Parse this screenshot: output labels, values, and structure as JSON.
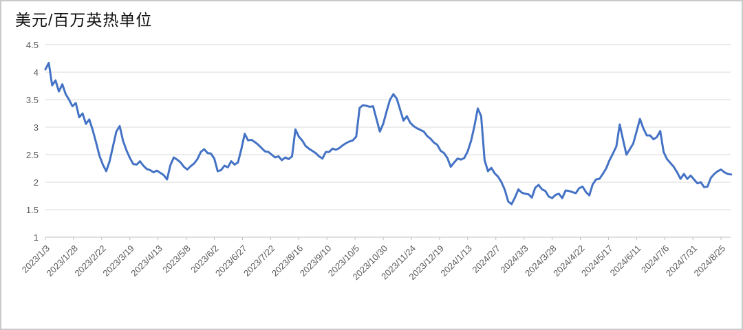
{
  "chart": {
    "title": "美元/百万英热单位"
  },
  "chart_data": {
    "type": "line",
    "title": "美元/百万英热单位",
    "x_start_date": "2023/1/3",
    "x_end_date": "2024/8/25",
    "sample_interval_days": 3,
    "x_tick_labels": [
      "2023/1/3",
      "2023/1/28",
      "2023/2/22",
      "2023/3/19",
      "2023/4/13",
      "2023/5/8",
      "2023/6/2",
      "2023/6/27",
      "2023/7/22",
      "2023/8/16",
      "2023/9/10",
      "2023/10/5",
      "2023/10/30",
      "2023/11/24",
      "2023/12/19",
      "2024/1/13",
      "2024/2/7",
      "2024/3/3",
      "2024/3/28",
      "2024/4/22",
      "2024/5/17",
      "2024/6/11",
      "2024/7/6",
      "2024/7/31",
      "2024/8/25"
    ],
    "x_tick_interval_days": 25,
    "y_tick_labels": [
      "4.5",
      "4",
      "3.5",
      "3",
      "2.5",
      "2",
      "1.5",
      "1"
    ],
    "ylim": [
      1,
      4.5
    ],
    "grid": "horizontal",
    "legend_position": "none",
    "line_color": "#4472C4",
    "gridline_color": "#D9D9D9",
    "axis_line_color": "#BFBFBF",
    "axis_label_color": "#595959",
    "values": [
      4.05,
      4.17,
      3.76,
      3.85,
      3.65,
      3.78,
      3.6,
      3.5,
      3.38,
      3.44,
      3.18,
      3.25,
      3.06,
      3.14,
      2.95,
      2.72,
      2.48,
      2.32,
      2.2,
      2.38,
      2.65,
      2.92,
      3.02,
      2.75,
      2.58,
      2.44,
      2.33,
      2.32,
      2.38,
      2.3,
      2.24,
      2.22,
      2.18,
      2.21,
      2.17,
      2.13,
      2.05,
      2.31,
      2.45,
      2.41,
      2.36,
      2.28,
      2.23,
      2.29,
      2.34,
      2.42,
      2.55,
      2.6,
      2.53,
      2.52,
      2.43,
      2.2,
      2.22,
      2.3,
      2.27,
      2.38,
      2.32,
      2.36,
      2.6,
      2.88,
      2.76,
      2.77,
      2.73,
      2.68,
      2.62,
      2.56,
      2.55,
      2.5,
      2.45,
      2.47,
      2.4,
      2.45,
      2.42,
      2.47,
      2.96,
      2.83,
      2.76,
      2.66,
      2.61,
      2.57,
      2.53,
      2.47,
      2.43,
      2.55,
      2.55,
      2.61,
      2.59,
      2.62,
      2.67,
      2.71,
      2.74,
      2.76,
      2.83,
      3.35,
      3.4,
      3.39,
      3.37,
      3.38,
      3.15,
      2.92,
      3.06,
      3.29,
      3.5,
      3.6,
      3.52,
      3.32,
      3.12,
      3.2,
      3.08,
      3.02,
      2.98,
      2.95,
      2.92,
      2.84,
      2.79,
      2.72,
      2.68,
      2.57,
      2.53,
      2.44,
      2.28,
      2.36,
      2.43,
      2.41,
      2.44,
      2.56,
      2.75,
      3.02,
      3.34,
      3.2,
      2.4,
      2.2,
      2.26,
      2.16,
      2.1,
      2.0,
      1.86,
      1.65,
      1.6,
      1.72,
      1.87,
      1.81,
      1.79,
      1.78,
      1.72,
      1.9,
      1.95,
      1.87,
      1.84,
      1.74,
      1.71,
      1.77,
      1.79,
      1.71,
      1.85,
      1.84,
      1.82,
      1.8,
      1.89,
      1.92,
      1.82,
      1.76,
      1.96,
      2.05,
      2.06,
      2.15,
      2.25,
      2.4,
      2.52,
      2.65,
      3.05,
      2.77,
      2.5,
      2.6,
      2.7,
      2.92,
      3.15,
      2.98,
      2.85,
      2.85,
      2.78,
      2.82,
      2.93,
      2.55,
      2.42,
      2.35,
      2.28,
      2.18,
      2.06,
      2.15,
      2.06,
      2.12,
      2.05,
      1.98,
      2.0,
      1.91,
      1.92,
      2.08,
      2.15,
      2.2,
      2.23,
      2.18,
      2.15,
      2.14
    ]
  }
}
